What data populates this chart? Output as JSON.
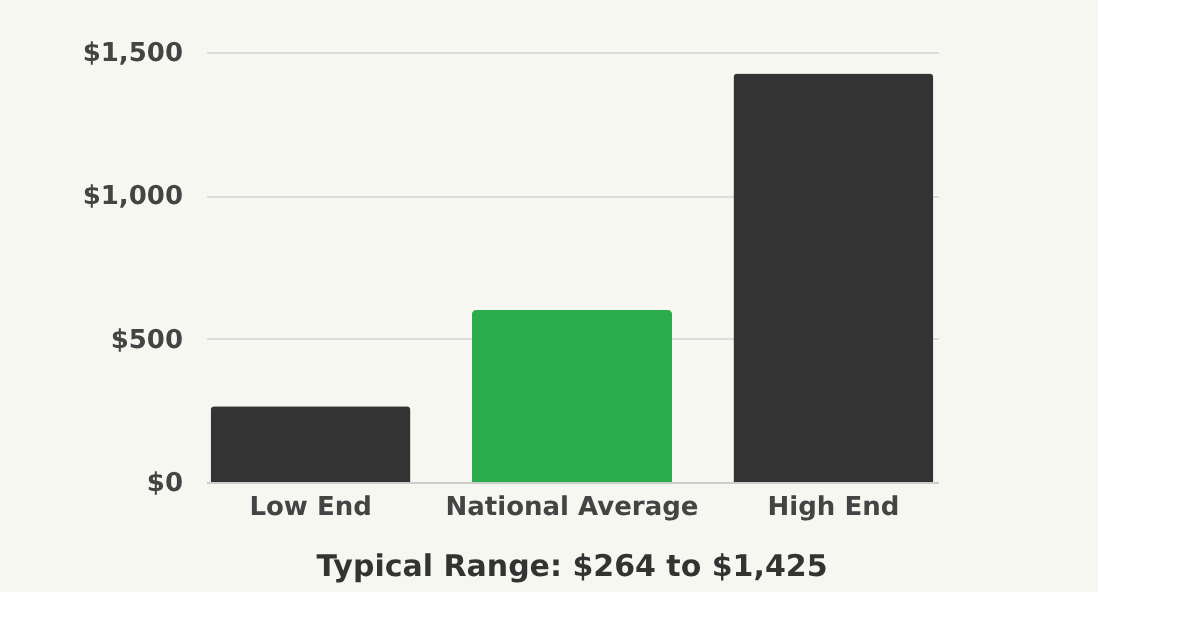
{
  "chart_data": {
    "type": "bar",
    "categories": [
      "Low End",
      "National Average",
      "High End"
    ],
    "values": [
      264,
      600,
      1425
    ],
    "colors": [
      "#333333",
      "#2bad4e",
      "#333333"
    ],
    "ylim": [
      0,
      1500
    ],
    "yticks": [
      {
        "value": 0,
        "label": "$0"
      },
      {
        "value": 500,
        "label": "$500"
      },
      {
        "value": 1000,
        "label": "$1,000"
      },
      {
        "value": 1500,
        "label": "$1,500"
      }
    ],
    "grid": "y",
    "annotations": [
      "Typical Range: $264 to $1,425"
    ]
  }
}
